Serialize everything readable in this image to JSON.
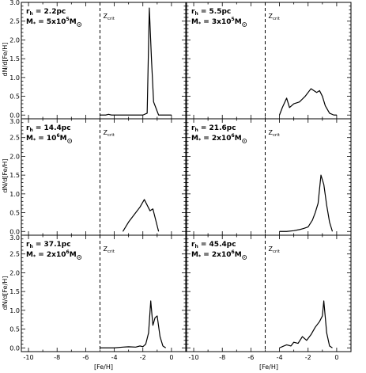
{
  "chart_data": {
    "type": "line",
    "xlabel": "[Fe/H]",
    "ylabel": "dN/d[Fe/H]",
    "xlim": [
      -10.5,
      1.0
    ],
    "ylim": [
      -0.1,
      3.0
    ],
    "xticks": [
      "-10",
      "-8",
      "-6",
      "-4",
      "-2",
      "0"
    ],
    "yticks": [
      "0.0",
      "0.5",
      "1.0",
      "1.5",
      "2.0",
      "2.5",
      "3.0"
    ],
    "zcrit_label": "Z",
    "zcrit_sub": "crit",
    "zcrit_x": -5.0,
    "grid": false,
    "line_color": "#000000",
    "panels": [
      {
        "rh_label": "r",
        "rh_sub": "h",
        "rh_value": "= 2.2pc",
        "m_label": "M",
        "m_sub": "*",
        "m_value": "= 5x10",
        "m_exp": "5",
        "m_unit": "M",
        "x": [
          -5.0,
          -4.6,
          -4.4,
          -4.2,
          -3.0,
          -2.0,
          -1.7,
          -1.55,
          -1.4,
          -1.25,
          -1.1,
          -0.9,
          -0.5,
          0.0
        ],
        "y": [
          0.0,
          0.0,
          0.02,
          0.0,
          0.0,
          0.0,
          0.05,
          2.85,
          1.5,
          0.35,
          0.2,
          0.0,
          0.0,
          0.0
        ]
      },
      {
        "rh_label": "r",
        "rh_sub": "h",
        "rh_value": "= 5.5pc",
        "m_label": "M",
        "m_sub": "*",
        "m_value": "= 3x10",
        "m_exp": "5",
        "m_unit": "M",
        "x": [
          -4.0,
          -3.8,
          -3.5,
          -3.3,
          -3.0,
          -2.6,
          -2.2,
          -1.8,
          -1.4,
          -1.2,
          -1.0,
          -0.8,
          -0.5,
          -0.2,
          0.0
        ],
        "y": [
          0.0,
          0.2,
          0.45,
          0.2,
          0.3,
          0.35,
          0.5,
          0.7,
          0.6,
          0.65,
          0.5,
          0.25,
          0.05,
          0.0,
          0.0
        ]
      },
      {
        "rh_label": "r",
        "rh_sub": "h",
        "rh_value": "= 14.4pc",
        "m_label": "M",
        "m_sub": "*",
        "m_value": "= 10",
        "m_exp": "6",
        "m_unit": "M",
        "x": [
          -3.4,
          -3.0,
          -2.6,
          -2.2,
          -1.9,
          -1.7,
          -1.5,
          -1.3,
          -1.1,
          -0.9
        ],
        "y": [
          0.0,
          0.25,
          0.45,
          0.65,
          0.85,
          0.7,
          0.55,
          0.6,
          0.3,
          0.0
        ]
      },
      {
        "rh_label": "r",
        "rh_sub": "h",
        "rh_value": "= 21.6pc",
        "m_label": "M",
        "m_sub": "*",
        "m_value": "= 2x10",
        "m_exp": "6",
        "m_unit": "M",
        "x": [
          -4.0,
          -3.5,
          -3.0,
          -2.6,
          -2.3,
          -2.0,
          -1.7,
          -1.5,
          -1.3,
          -1.1,
          -0.9,
          -0.7,
          -0.5,
          -0.3
        ],
        "y": [
          0.0,
          0.0,
          0.02,
          0.05,
          0.08,
          0.12,
          0.3,
          0.5,
          0.75,
          1.5,
          1.25,
          0.7,
          0.25,
          0.0
        ]
      },
      {
        "rh_label": "r",
        "rh_sub": "h",
        "rh_value": "= 37.1pc",
        "m_label": "M",
        "m_sub": "*",
        "m_value": "= 2x10",
        "m_exp": "6",
        "m_unit": "M",
        "x": [
          -5.0,
          -4.0,
          -3.4,
          -3.0,
          -2.5,
          -2.2,
          -2.0,
          -1.8,
          -1.6,
          -1.45,
          -1.3,
          -1.15,
          -1.0,
          -0.8,
          -0.6,
          -0.4
        ],
        "y": [
          0.0,
          0.0,
          0.02,
          0.03,
          0.02,
          0.05,
          0.03,
          0.1,
          0.4,
          1.25,
          0.6,
          0.8,
          0.85,
          0.3,
          0.05,
          0.0
        ]
      },
      {
        "rh_label": "r",
        "rh_sub": "h",
        "rh_value": "= 45.4pc",
        "m_label": "M",
        "m_sub": "*",
        "m_value": "= 2x10",
        "m_exp": "6",
        "m_unit": "M",
        "x": [
          -4.0,
          -3.7,
          -3.5,
          -3.2,
          -3.0,
          -2.7,
          -2.4,
          -2.1,
          -1.8,
          -1.5,
          -1.2,
          -1.0,
          -0.9,
          -0.7,
          -0.5,
          -0.3
        ],
        "y": [
          0.0,
          0.05,
          0.08,
          0.05,
          0.15,
          0.12,
          0.3,
          0.2,
          0.35,
          0.55,
          0.7,
          0.85,
          1.25,
          0.4,
          0.05,
          0.0
        ]
      }
    ]
  }
}
